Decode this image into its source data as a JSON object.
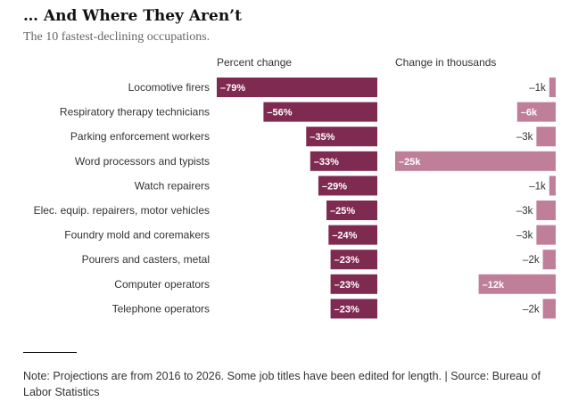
{
  "header": {
    "title": "… And Where They Aren’t",
    "subtitle": "The 10 fastest-declining occupations."
  },
  "footer": {
    "note": "Note: Projections are from 2016 to 2026. Some job titles have been edited for length. | Source: Bureau of Labor Statistics"
  },
  "colors": {
    "percent_bar": "#7f2a50",
    "thousands_bar": "#bf7f99"
  },
  "chart_data": [
    {
      "type": "bar",
      "orientation": "horizontal",
      "title": "Percent change",
      "categories": [
        "Locomotive firers",
        "Respiratory therapy technicians",
        "Parking enforcement workers",
        "Word processors and typists",
        "Watch repairers",
        "Elec. equip. repairers, motor vehicles",
        "Foundry mold and coremakers",
        "Pourers and casters, metal",
        "Computer operators",
        "Telephone operators"
      ],
      "values": [
        -79,
        -56,
        -35,
        -33,
        -29,
        -25,
        -24,
        -23,
        -23,
        -23
      ],
      "labels": [
        "–79%",
        "–56%",
        "–35%",
        "–33%",
        "–29%",
        "–25%",
        "–24%",
        "–23%",
        "–23%",
        "–23%"
      ],
      "xlim": [
        -79,
        0
      ],
      "grid": false
    },
    {
      "type": "bar",
      "orientation": "horizontal",
      "title": "Change in thousands",
      "categories": [
        "Locomotive firers",
        "Respiratory therapy technicians",
        "Parking enforcement workers",
        "Word processors and typists",
        "Watch repairers",
        "Elec. equip. repairers, motor vehicles",
        "Foundry mold and coremakers",
        "Pourers and casters, metal",
        "Computer operators",
        "Telephone operators"
      ],
      "values": [
        -1,
        -6,
        -3,
        -25,
        -1,
        -3,
        -3,
        -2,
        -12,
        -2
      ],
      "labels": [
        "–1k",
        "–6k",
        "–3k",
        "–25k",
        "–1k",
        "–3k",
        "–3k",
        "–2k",
        "–12k",
        "–2k"
      ],
      "xlim": [
        -25,
        0
      ],
      "grid": false
    }
  ]
}
